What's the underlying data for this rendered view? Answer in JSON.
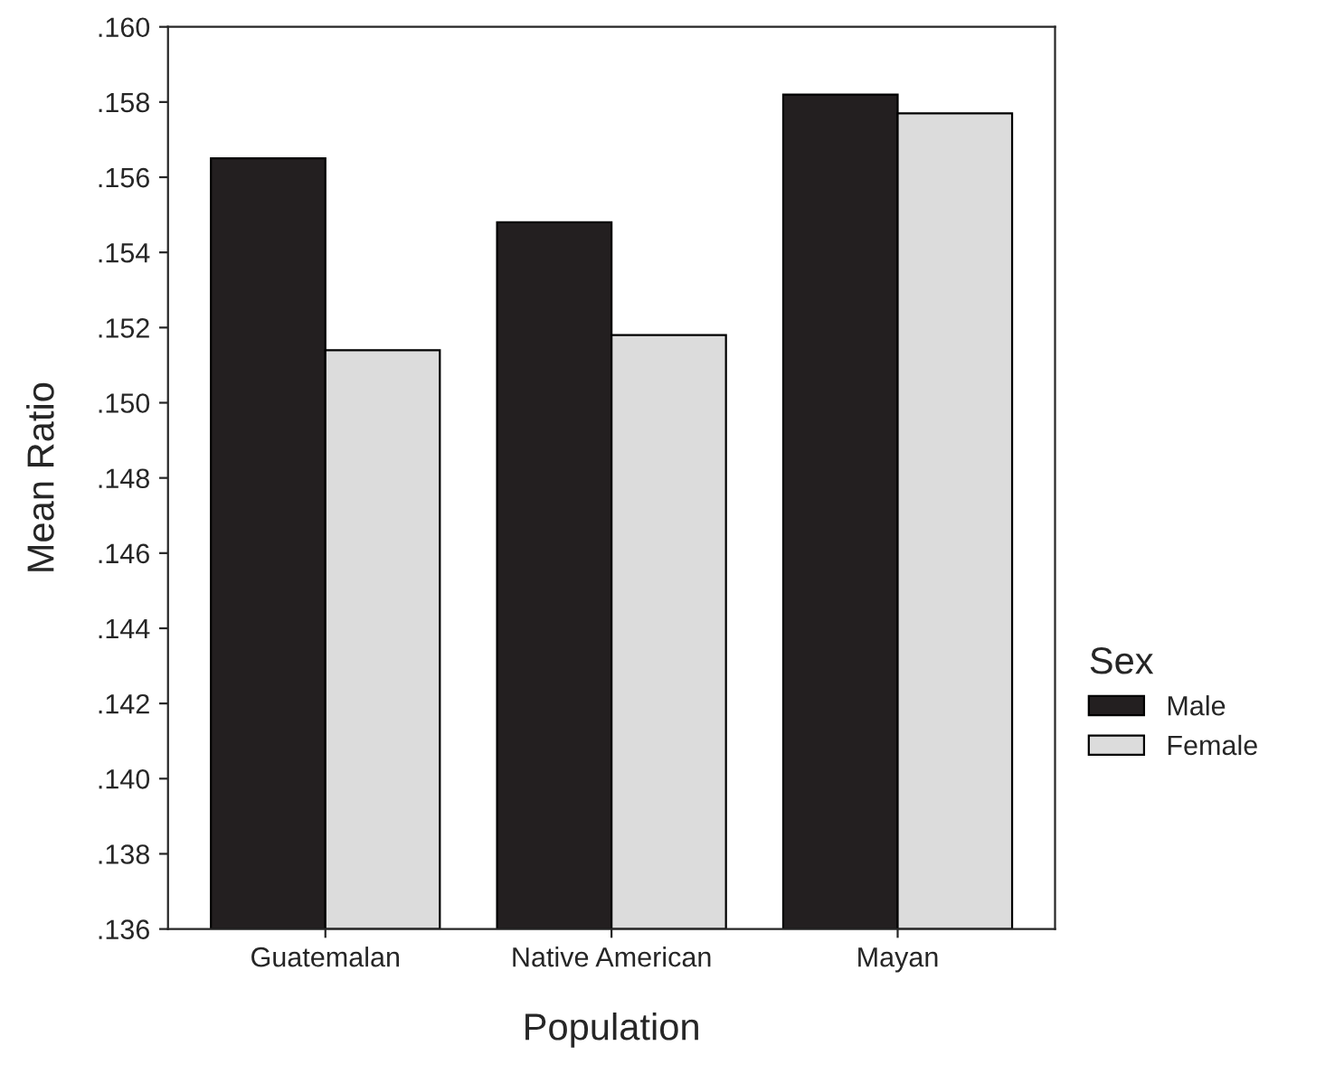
{
  "chart_data": {
    "type": "bar",
    "xlabel": "Population",
    "ylabel": "Mean Ratio",
    "legend_title": "Sex",
    "categories": [
      "Guatemalan",
      "Native American",
      "Mayan"
    ],
    "series": [
      {
        "name": "Male",
        "color": "#231f20",
        "values": [
          0.1565,
          0.1548,
          0.1582
        ]
      },
      {
        "name": "Female",
        "color": "#dcdcdc",
        "values": [
          0.1514,
          0.1518,
          0.1577
        ]
      }
    ],
    "ylim": [
      0.136,
      0.16
    ],
    "yticks": [
      {
        "value": 0.136,
        "label": ".136"
      },
      {
        "value": 0.138,
        "label": ".138"
      },
      {
        "value": 0.14,
        "label": ".140"
      },
      {
        "value": 0.142,
        "label": ".142"
      },
      {
        "value": 0.144,
        "label": ".144"
      },
      {
        "value": 0.146,
        "label": ".146"
      },
      {
        "value": 0.148,
        "label": ".148"
      },
      {
        "value": 0.15,
        "label": ".150"
      },
      {
        "value": 0.152,
        "label": ".152"
      },
      {
        "value": 0.154,
        "label": ".154"
      },
      {
        "value": 0.156,
        "label": ".156"
      },
      {
        "value": 0.158,
        "label": ".158"
      },
      {
        "value": 0.16,
        "label": ".160"
      }
    ],
    "grid": false,
    "legend": "right"
  }
}
